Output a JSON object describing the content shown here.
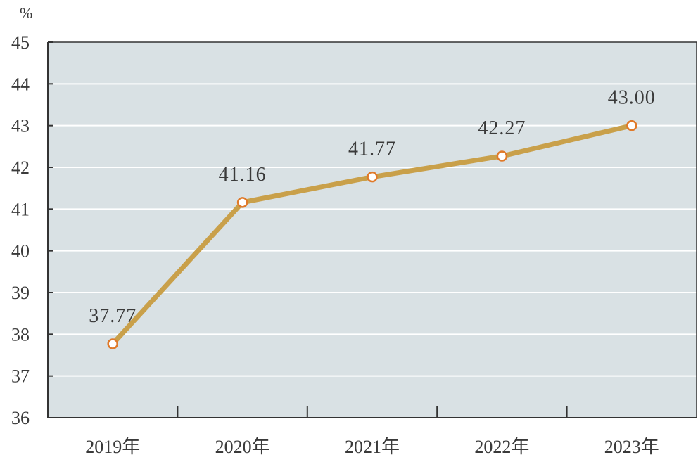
{
  "chart_data": {
    "type": "line",
    "title": "",
    "xlabel": "",
    "ylabel": "%",
    "categories": [
      "2019年",
      "2020年",
      "2021年",
      "2022年",
      "2023年"
    ],
    "series": [
      {
        "values": [
          37.77,
          41.16,
          41.77,
          42.27,
          43.0
        ],
        "labels": [
          "37.77",
          "41.16",
          "41.77",
          "42.27",
          "43.00"
        ]
      }
    ],
    "ylim": [
      36,
      45
    ],
    "yticks": [
      "36",
      "37",
      "38",
      "39",
      "40",
      "41",
      "42",
      "43",
      "44",
      "45"
    ],
    "grid": true,
    "legend": "none",
    "colors": {
      "plot_background": "#d9e1e4",
      "gridline": "#ffffff",
      "axis": "#333333",
      "line": "#c9a04a",
      "marker_fill": "#ffffff",
      "marker_stroke": "#e07a2a"
    }
  }
}
